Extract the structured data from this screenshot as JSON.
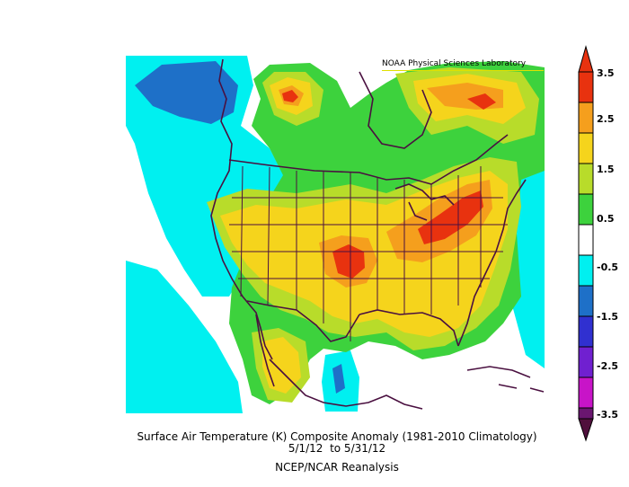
{
  "map": {
    "credit": "NOAA Physical Sciences Laboratory",
    "title": "Surface Air Temperature (K) Composite Anomaly (1981-2010 Climatology)",
    "date_range": "5/1/12  to 5/31/12",
    "source": "NCEP/NCAR Reanalysis",
    "region": "North America (contiguous US, southern Canada, Mexico)"
  },
  "colorbar": {
    "labels": [
      "3.5",
      "2.5",
      "1.5",
      "0.5",
      "-0.5",
      "-1.5",
      "-2.5",
      "-3.5"
    ],
    "colors": [
      "#e8320f",
      "#f59f1d",
      "#f5d41c",
      "#b8dc2a",
      "#3dd23d",
      "#ffffff",
      "#00f0f0",
      "#1e70c8",
      "#3030d0",
      "#7020d0",
      "#c814c8",
      "#6a1670"
    ],
    "top_arrow_color": "#e8320f",
    "bottom_arrow_color": "#50103c"
  },
  "colors": {
    "warm_strong": "#e8320f",
    "warm": "#f59f1d",
    "mild": "#f5d41c",
    "slight": "#b8dc2a",
    "near_zero_pos": "#3dd23d",
    "near_zero": "#ffffff",
    "cool": "#00f0f0",
    "cold": "#1e70c8",
    "coastline": "#4a1040"
  }
}
